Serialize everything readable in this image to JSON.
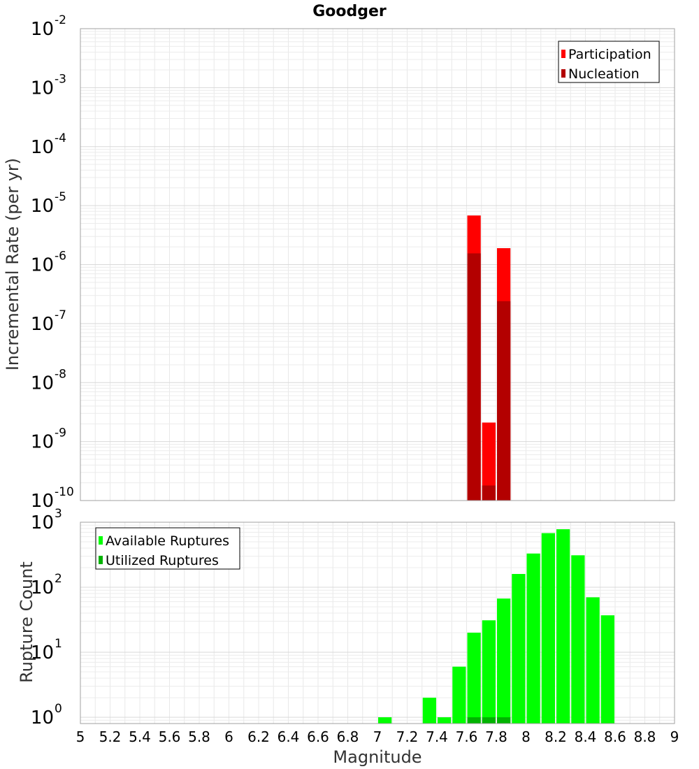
{
  "chart_data": [
    {
      "type": "bar",
      "title": "Goodger",
      "xlabel": "",
      "ylabel": "Incremental Rate (per yr)",
      "xlim": [
        5,
        9
      ],
      "ylim": [
        1e-10,
        0.01
      ],
      "yscale": "log",
      "y_ticks": [
        {
          "value": 1e-10,
          "base": "10",
          "exp": "-10"
        },
        {
          "value": 1e-09,
          "base": "10",
          "exp": "-9"
        },
        {
          "value": 1e-08,
          "base": "10",
          "exp": "-8"
        },
        {
          "value": 1e-07,
          "base": "10",
          "exp": "-7"
        },
        {
          "value": 1e-06,
          "base": "10",
          "exp": "-6"
        },
        {
          "value": 1e-05,
          "base": "10",
          "exp": "-5"
        },
        {
          "value": 0.0001,
          "base": "10",
          "exp": "-4"
        },
        {
          "value": 0.001,
          "base": "10",
          "exp": "-3"
        },
        {
          "value": 0.01,
          "base": "10",
          "exp": "-2"
        }
      ],
      "grid": true,
      "legend_position": "top-right",
      "bar_width": 0.1,
      "series": [
        {
          "name": "Participation",
          "color": "#ff0000",
          "x": [
            7.65,
            7.75,
            7.85
          ],
          "values": [
            6.8e-06,
            2.1e-09,
            1.9e-06
          ]
        },
        {
          "name": "Nucleation",
          "color": "#b30000",
          "x": [
            7.65,
            7.75,
            7.85
          ],
          "values": [
            1.55e-06,
            1.8e-10,
            2.4e-07
          ]
        }
      ]
    },
    {
      "type": "bar",
      "title": "",
      "xlabel": "Magnitude",
      "ylabel": "Rupture Count",
      "xlim": [
        5,
        9
      ],
      "ylim": [
        0.8,
        1000
      ],
      "yscale": "log",
      "x_ticks": [
        "5",
        "5.2",
        "5.4",
        "5.6",
        "5.8",
        "6",
        "6.2",
        "6.4",
        "6.6",
        "6.8",
        "7",
        "7.2",
        "7.4",
        "7.6",
        "7.8",
        "8",
        "8.2",
        "8.4",
        "8.6",
        "8.8",
        "9"
      ],
      "y_ticks": [
        {
          "value": 1,
          "base": "10",
          "exp": "0"
        },
        {
          "value": 10,
          "base": "10",
          "exp": "1"
        },
        {
          "value": 100,
          "base": "10",
          "exp": "2"
        },
        {
          "value": 1000,
          "base": "10",
          "exp": "3"
        }
      ],
      "grid": true,
      "legend_position": "top-left",
      "bar_width": 0.1,
      "series": [
        {
          "name": "Available Ruptures",
          "color": "#00ff00",
          "x": [
            7.05,
            7.35,
            7.45,
            7.55,
            7.65,
            7.75,
            7.85,
            7.95,
            8.05,
            8.15,
            8.25,
            8.35,
            8.45,
            8.55
          ],
          "values": [
            1,
            2,
            1,
            6,
            20,
            31,
            67,
            160,
            330,
            680,
            780,
            310,
            70,
            37
          ]
        },
        {
          "name": "Utilized Ruptures",
          "color": "#00b300",
          "x": [
            7.65,
            7.75,
            7.85
          ],
          "values": [
            1,
            1,
            1
          ]
        }
      ]
    }
  ]
}
